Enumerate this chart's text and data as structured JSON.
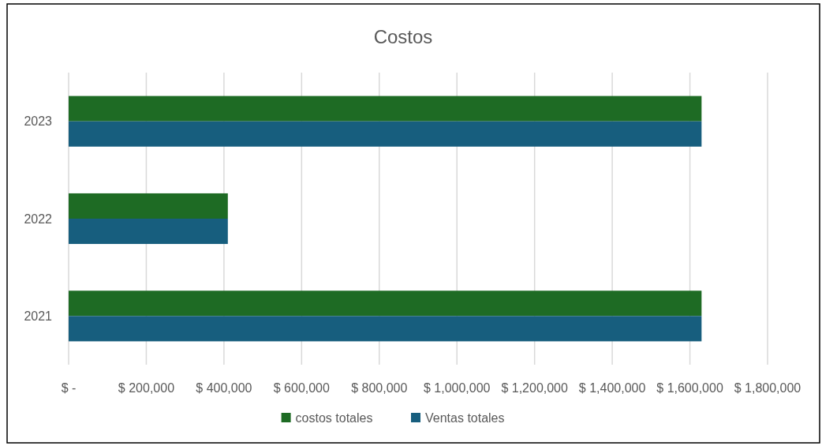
{
  "chart_data": {
    "type": "bar",
    "orientation": "horizontal",
    "title": "Costos",
    "categories": [
      "2023",
      "2022",
      "2021"
    ],
    "series": [
      {
        "name": "costos totales",
        "color": "#1e6b24",
        "values": [
          1630000,
          410000,
          1630000
        ]
      },
      {
        "name": "Ventas totales",
        "color": "#175e7e",
        "values": [
          1630000,
          410000,
          1630000
        ]
      }
    ],
    "xlim": [
      0,
      1800000
    ],
    "xticks": [
      {
        "value": 0,
        "label": "$ -"
      },
      {
        "value": 200000,
        "label": "$ 200,000"
      },
      {
        "value": 400000,
        "label": "$ 400,000"
      },
      {
        "value": 600000,
        "label": "$ 600,000"
      },
      {
        "value": 800000,
        "label": "$ 800,000"
      },
      {
        "value": 1000000,
        "label": "$ 1,000,000"
      },
      {
        "value": 1200000,
        "label": "$ 1,200,000"
      },
      {
        "value": 1400000,
        "label": "$ 1,400,000"
      },
      {
        "value": 1600000,
        "label": "$ 1,600,000"
      },
      {
        "value": 1800000,
        "label": "$ 1,800,000"
      }
    ],
    "grid": "x",
    "legend": "bottom"
  }
}
